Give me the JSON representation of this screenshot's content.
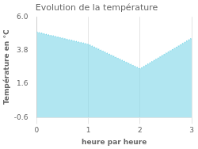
{
  "chart_data": {
    "type": "line",
    "title": "Evolution de la température",
    "xlabel": "heure par heure",
    "ylabel": "Température en °C",
    "x": [
      0,
      1,
      2,
      3
    ],
    "values": [
      5.0,
      4.2,
      2.6,
      4.6
    ],
    "color": "#7dd6e8",
    "line_style": "dotted",
    "xlim": [
      0,
      3
    ],
    "xticks": [
      0,
      1,
      2,
      3
    ],
    "ylim": [
      -0.6,
      6.0
    ],
    "yticks": [
      -0.6,
      1.6,
      3.8,
      {
        "value": 6.0,
        "label": "6.0"
      }
    ],
    "grid": "x"
  }
}
